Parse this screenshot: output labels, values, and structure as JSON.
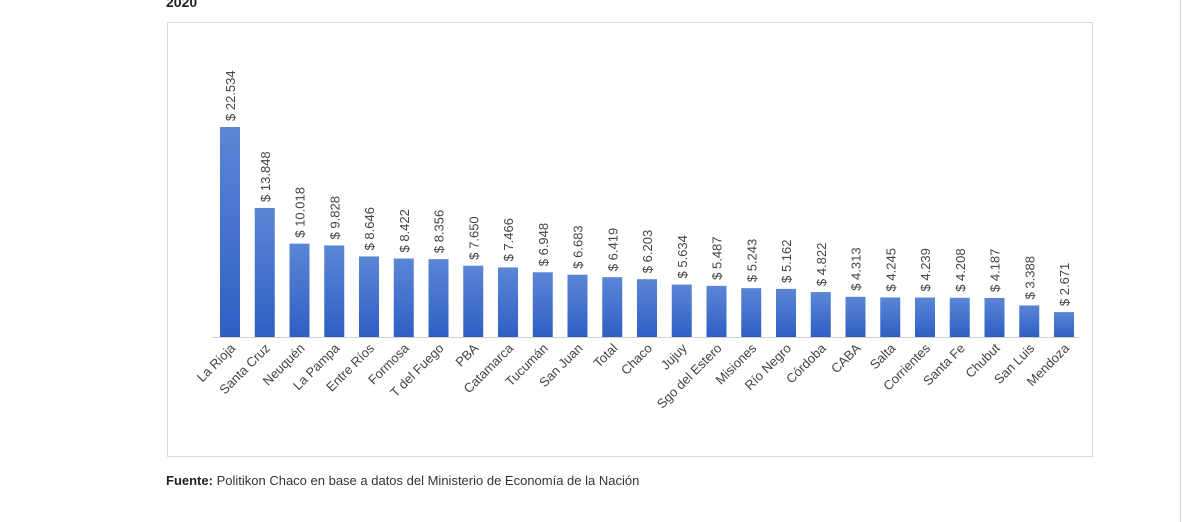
{
  "header": {
    "year": "2020"
  },
  "chart_data": {
    "type": "bar",
    "title": "2020",
    "xlabel": "",
    "ylabel": "",
    "ylim": [
      0,
      22534
    ],
    "grid": false,
    "value_prefix": "$ ",
    "categories": [
      "La Rioja",
      "Santa Cruz",
      "Neuquén",
      "La Pampa",
      "Entre Ríos",
      "Formosa",
      "T del Fuego",
      "PBA",
      "Catamarca",
      "Tucumán",
      "San Juan",
      "Total",
      "Chaco",
      "Jujuy",
      "Sgo del Estero",
      "Misiones",
      "Río Negro",
      "Córdoba",
      "CABA",
      "Salta",
      "Corrientes",
      "Santa Fe",
      "Chubut",
      "San Luis",
      "Mendoza"
    ],
    "values": [
      22534,
      13848,
      10018,
      9828,
      8646,
      8422,
      8356,
      7650,
      7466,
      6948,
      6683,
      6419,
      6203,
      5634,
      5487,
      5243,
      5162,
      4822,
      4313,
      4245,
      4239,
      4208,
      4187,
      3388,
      2671
    ],
    "labels": [
      "$ 22.534",
      "$ 13.848",
      "$ 10.018",
      "$ 9.828",
      "$ 8.646",
      "$ 8.422",
      "$ 8.356",
      "$ 7.650",
      "$ 7.466",
      "$ 6.948",
      "$ 6.683",
      "$ 6.419",
      "$ 6.203",
      "$ 5.634",
      "$ 5.487",
      "$ 5.243",
      "$ 5.162",
      "$ 4.822",
      "$ 4.313",
      "$ 4.245",
      "$ 4.239",
      "$ 4.208",
      "$ 4.187",
      "$ 3.388",
      "$ 2.671"
    ],
    "colors": {
      "bar_top": "#5b86d6",
      "bar_bottom": "#2f5fc4"
    }
  },
  "source": {
    "label": "Fuente:",
    "text": "Politikon Chaco en base a datos del Ministerio de Economía de la Nación"
  }
}
